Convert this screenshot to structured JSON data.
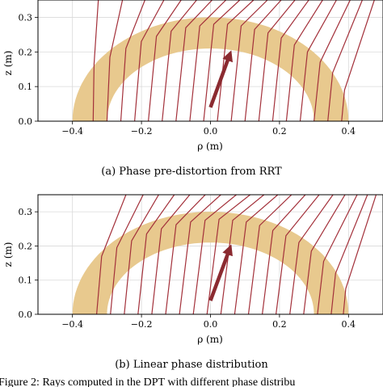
{
  "figure_caption": "Figure 2: Rays computed in the DPT with different phase distribu",
  "chart_data": [
    {
      "type": "line",
      "caption": "(a) Phase pre-distortion from RRT",
      "xlabel": "ρ (m)",
      "ylabel": "z (m)",
      "xlim": [
        -0.5,
        0.5
      ],
      "ylim": [
        0.0,
        0.35
      ],
      "xticks": [
        "−0.4",
        "−0.2",
        "0.0",
        "0.2",
        "0.4"
      ],
      "yticks": [
        "0.0",
        "0.1",
        "0.2",
        "0.3"
      ],
      "grid": true,
      "lens": {
        "color": "#e8c98e",
        "inner_radius": 0.3,
        "outer_radius": 0.4,
        "center": [
          0.0,
          0.0
        ]
      },
      "ray_color": "#a3303a",
      "rays": [
        {
          "x0": -0.34,
          "y0": 0.0,
          "bend_y": 0.165,
          "top_x": -0.325
        },
        {
          "x0": -0.3,
          "y0": 0.0,
          "bend_y": 0.185,
          "top_x": -0.255
        },
        {
          "x0": -0.26,
          "y0": 0.0,
          "bend_y": 0.21,
          "top_x": -0.19
        },
        {
          "x0": -0.22,
          "y0": 0.0,
          "bend_y": 0.23,
          "top_x": -0.135
        },
        {
          "x0": -0.18,
          "y0": 0.0,
          "bend_y": 0.245,
          "top_x": -0.085
        },
        {
          "x0": -0.14,
          "y0": 0.0,
          "bend_y": 0.26,
          "top_x": -0.04
        },
        {
          "x0": -0.1,
          "y0": 0.0,
          "bend_y": 0.27,
          "top_x": 0.005
        },
        {
          "x0": -0.06,
          "y0": 0.0,
          "bend_y": 0.275,
          "top_x": 0.045
        },
        {
          "x0": -0.02,
          "y0": 0.0,
          "bend_y": 0.28,
          "top_x": 0.085
        },
        {
          "x0": 0.02,
          "y0": 0.0,
          "bend_y": 0.28,
          "top_x": 0.125
        },
        {
          "x0": 0.06,
          "y0": 0.0,
          "bend_y": 0.275,
          "top_x": 0.165
        },
        {
          "x0": 0.1,
          "y0": 0.0,
          "bend_y": 0.265,
          "top_x": 0.205
        },
        {
          "x0": 0.14,
          "y0": 0.0,
          "bend_y": 0.255,
          "top_x": 0.245
        },
        {
          "x0": 0.18,
          "y0": 0.0,
          "bend_y": 0.24,
          "top_x": 0.285
        },
        {
          "x0": 0.22,
          "y0": 0.0,
          "bend_y": 0.22,
          "top_x": 0.325
        },
        {
          "x0": 0.26,
          "y0": 0.0,
          "bend_y": 0.2,
          "top_x": 0.365
        },
        {
          "x0": 0.3,
          "y0": 0.0,
          "bend_y": 0.17,
          "top_x": 0.405
        },
        {
          "x0": 0.34,
          "y0": 0.0,
          "bend_y": 0.14,
          "top_x": 0.44
        },
        {
          "x0": 0.38,
          "y0": 0.0,
          "bend_y": 0.09,
          "top_x": 0.475
        }
      ],
      "arrow": {
        "from": [
          0.0,
          0.04
        ],
        "to": [
          0.055,
          0.19
        ],
        "color": "#8b2a30"
      }
    },
    {
      "type": "line",
      "caption": "(b) Linear phase distribution",
      "xlabel": "ρ (m)",
      "ylabel": "z (m)",
      "xlim": [
        -0.5,
        0.5
      ],
      "ylim": [
        0.0,
        0.35
      ],
      "xticks": [
        "−0.4",
        "−0.2",
        "0.0",
        "0.2",
        "0.4"
      ],
      "yticks": [
        "0.0",
        "0.1",
        "0.2",
        "0.3"
      ],
      "grid": true,
      "lens": {
        "color": "#e8c98e",
        "inner_radius": 0.3,
        "outer_radius": 0.4,
        "center": [
          0.0,
          0.0
        ]
      },
      "ray_color": "#a3303a",
      "rays": [
        {
          "x0": -0.33,
          "y0": 0.0,
          "bend_y": 0.17,
          "top_x": -0.245
        },
        {
          "x0": -0.29,
          "y0": 0.0,
          "bend_y": 0.195,
          "top_x": -0.195
        },
        {
          "x0": -0.25,
          "y0": 0.0,
          "bend_y": 0.215,
          "top_x": -0.15
        },
        {
          "x0": -0.21,
          "y0": 0.0,
          "bend_y": 0.235,
          "top_x": -0.105
        },
        {
          "x0": -0.17,
          "y0": 0.0,
          "bend_y": 0.25,
          "top_x": -0.06
        },
        {
          "x0": -0.13,
          "y0": 0.0,
          "bend_y": 0.262,
          "top_x": -0.015
        },
        {
          "x0": -0.09,
          "y0": 0.0,
          "bend_y": 0.27,
          "top_x": 0.03
        },
        {
          "x0": -0.05,
          "y0": 0.0,
          "bend_y": 0.275,
          "top_x": 0.075
        },
        {
          "x0": -0.01,
          "y0": 0.0,
          "bend_y": 0.278,
          "top_x": 0.115
        },
        {
          "x0": 0.03,
          "y0": 0.0,
          "bend_y": 0.275,
          "top_x": 0.155
        },
        {
          "x0": 0.07,
          "y0": 0.0,
          "bend_y": 0.27,
          "top_x": 0.195
        },
        {
          "x0": 0.11,
          "y0": 0.0,
          "bend_y": 0.26,
          "top_x": 0.235
        },
        {
          "x0": 0.15,
          "y0": 0.0,
          "bend_y": 0.245,
          "top_x": 0.275
        },
        {
          "x0": 0.19,
          "y0": 0.0,
          "bend_y": 0.23,
          "top_x": 0.315
        },
        {
          "x0": 0.23,
          "y0": 0.0,
          "bend_y": 0.21,
          "top_x": 0.355
        },
        {
          "x0": 0.27,
          "y0": 0.0,
          "bend_y": 0.185,
          "top_x": 0.39
        },
        {
          "x0": 0.31,
          "y0": 0.0,
          "bend_y": 0.155,
          "top_x": 0.425
        },
        {
          "x0": 0.35,
          "y0": 0.0,
          "bend_y": 0.12,
          "top_x": 0.455
        },
        {
          "x0": 0.385,
          "y0": 0.0,
          "bend_y": 0.075,
          "top_x": 0.48
        }
      ],
      "arrow": {
        "from": [
          0.0,
          0.04
        ],
        "to": [
          0.055,
          0.19
        ],
        "color": "#8b2a30"
      }
    }
  ]
}
